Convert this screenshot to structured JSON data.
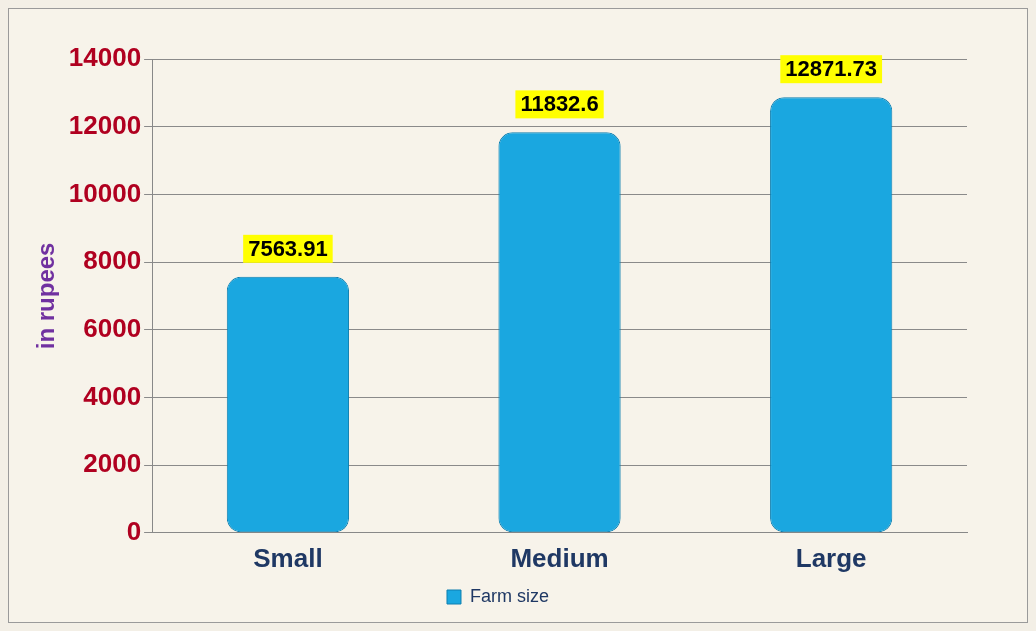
{
  "chart_data": {
    "type": "bar",
    "y_label": "in rupees",
    "categories": [
      "Small",
      "Medium",
      "Large"
    ],
    "series": [
      {
        "name": "Farm size",
        "color": "#1aa7e0",
        "values": [
          7563.91,
          11832.6,
          12871.73
        ]
      }
    ],
    "ylim": [
      0,
      14000
    ],
    "yticks": [
      0,
      2000,
      4000,
      6000,
      8000,
      10000,
      12000,
      14000
    ],
    "grid": true,
    "legend": "bottom",
    "data_labels": true
  }
}
